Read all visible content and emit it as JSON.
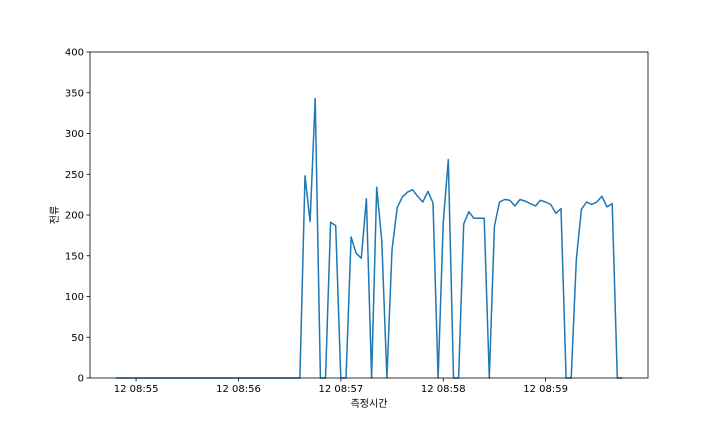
{
  "chart_data": {
    "type": "line",
    "title": "",
    "xlabel": "측정시간",
    "ylabel": "전류",
    "ylim": [
      0,
      400
    ],
    "xlim": [
      "08:54:33",
      "09:00:00"
    ],
    "grid": false,
    "line_color": "#1f77b4",
    "yticks": [
      0,
      50,
      100,
      150,
      200,
      250,
      300,
      350,
      400
    ],
    "xticks": [
      {
        "time": "08:55:00",
        "label": "12 08:55"
      },
      {
        "time": "08:56:00",
        "label": "12 08:56"
      },
      {
        "time": "08:57:00",
        "label": "12 08:57"
      },
      {
        "time": "08:58:00",
        "label": "12 08:58"
      },
      {
        "time": "08:59:00",
        "label": "12 08:59"
      }
    ],
    "x": [
      "08:54:48",
      "08:56:36",
      "08:56:39",
      "08:56:42",
      "08:56:45",
      "08:56:48",
      "08:56:51",
      "08:56:54",
      "08:56:57",
      "08:57:00",
      "08:57:03",
      "08:57:06",
      "08:57:09",
      "08:57:12",
      "08:57:15",
      "08:57:18",
      "08:57:21",
      "08:57:24",
      "08:57:27",
      "08:57:30",
      "08:57:33",
      "08:57:36",
      "08:57:39",
      "08:57:42",
      "08:57:45",
      "08:57:48",
      "08:57:51",
      "08:57:54",
      "08:57:57",
      "08:58:00",
      "08:58:03",
      "08:58:06",
      "08:58:09",
      "08:58:12",
      "08:58:15",
      "08:58:18",
      "08:58:21",
      "08:58:24",
      "08:58:27",
      "08:58:30",
      "08:58:33",
      "08:58:36",
      "08:58:39",
      "08:58:42",
      "08:58:45",
      "08:58:48",
      "08:58:51",
      "08:58:54",
      "08:58:57",
      "08:59:00",
      "08:59:03",
      "08:59:06",
      "08:59:09",
      "08:59:12",
      "08:59:15",
      "08:59:18",
      "08:59:21",
      "08:59:24",
      "08:59:27",
      "08:59:30",
      "08:59:33",
      "08:59:36",
      "08:59:39",
      "08:59:42",
      "08:59:45"
    ],
    "y": [
      0,
      0,
      248,
      192,
      343,
      0,
      0,
      191,
      187,
      0,
      0,
      173,
      153,
      147,
      220,
      0,
      234,
      168,
      0,
      157,
      209,
      222,
      228,
      231,
      223,
      216,
      229,
      215,
      0,
      190,
      268,
      0,
      0,
      189,
      204,
      196,
      196,
      196,
      0,
      186,
      216,
      219,
      218,
      211,
      219,
      217,
      214,
      211,
      218,
      216,
      213,
      202,
      208,
      0,
      0,
      145,
      207,
      216,
      213,
      216,
      223,
      210,
      214,
      0,
      0
    ]
  }
}
